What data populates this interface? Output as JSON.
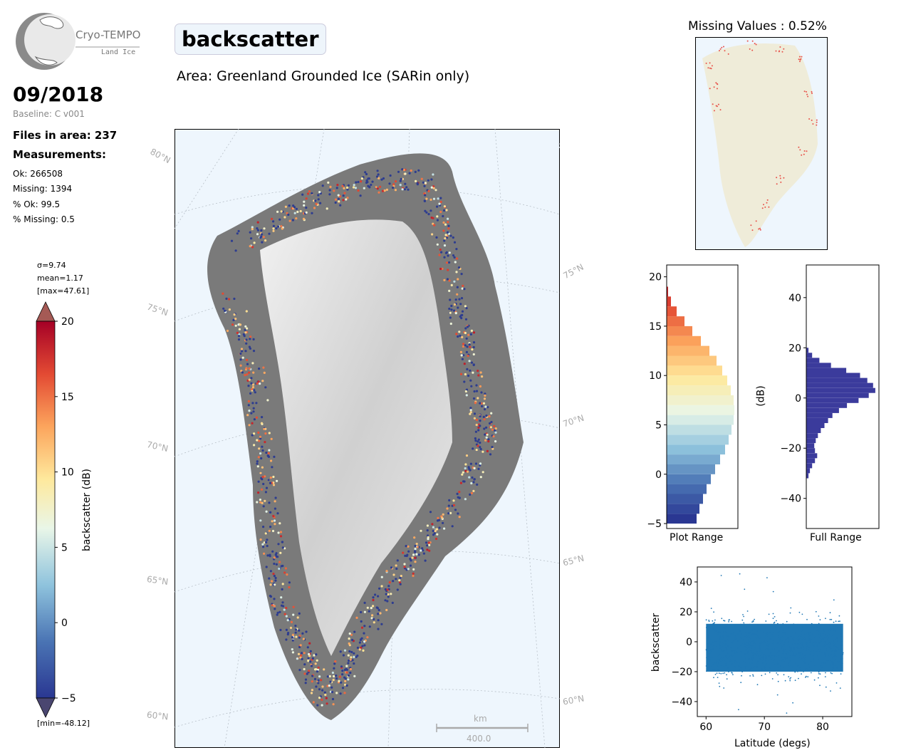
{
  "logo": {
    "name": "Cryo-TEMPO",
    "subtitle": "Land Ice"
  },
  "header": {
    "date": "09/2018",
    "baseline": "Baseline: C v001",
    "files_in_area": "Files in area: 237",
    "measurements_heading": "Measurements:",
    "stats": [
      "Ok: 266508",
      "Missing: 1394",
      "% Ok: 99.5",
      "% Missing: 0.5"
    ]
  },
  "title": "backscatter",
  "area": "Area: Greenland Grounded Ice (SARin only)",
  "colorbar": {
    "sigma": "σ=9.74",
    "mean": "mean=1.17",
    "max": "[max=47.61]",
    "min": "[min=-48.12]",
    "label": "backscatter (dB)",
    "ticks": [
      "20",
      "15",
      "10",
      "5",
      "0",
      "−5"
    ],
    "tick_values": [
      20,
      15,
      10,
      5,
      0,
      -5
    ],
    "range": [
      -5,
      20
    ],
    "colors": [
      "#2a3792",
      "#4a74b4",
      "#8fc3dd",
      "#e9f6e8",
      "#fee99d",
      "#fca55d",
      "#e34a33",
      "#a50026"
    ]
  },
  "map": {
    "lat_labels_left": [
      "80°N",
      "75°N",
      "70°N",
      "65°N",
      "60°N"
    ],
    "lat_labels_right": [
      "75°N",
      "70°N",
      "65°N",
      "60°N"
    ],
    "scale_unit": "km",
    "scale_value": "400.0",
    "colors": {
      "ocean": "#eef6fd",
      "ice": "#d9d9d9",
      "grid": "#b8c0c8"
    }
  },
  "missing_panel": {
    "title": "Missing Values : 0.52%",
    "colors": {
      "land": "#efecd9",
      "missing": "#e8524a"
    }
  },
  "chart_data": [
    {
      "type": "bar",
      "orientation": "horizontal",
      "name": "Plot Range histogram",
      "xlabel": "Plot Range",
      "ylabel": "",
      "ylim": [
        -5.5,
        21.2
      ],
      "yticks": [
        -5,
        0,
        5,
        10,
        15,
        20
      ],
      "bins": [
        -5,
        -4,
        -3,
        -2,
        -1,
        0,
        1,
        2,
        3,
        4,
        5,
        6,
        7,
        8,
        9,
        10,
        11,
        12,
        13,
        14,
        15,
        16,
        17,
        18
      ],
      "values": [
        0.42,
        0.46,
        0.51,
        0.56,
        0.62,
        0.68,
        0.75,
        0.82,
        0.87,
        0.91,
        0.94,
        0.95,
        0.94,
        0.9,
        0.85,
        0.78,
        0.7,
        0.6,
        0.48,
        0.36,
        0.25,
        0.14,
        0.06,
        0.02
      ]
    },
    {
      "type": "bar",
      "orientation": "horizontal",
      "name": "Full Range histogram",
      "xlabel": "Full Range",
      "ylabel": "(dB)",
      "ylim": [
        -52,
        53
      ],
      "yticks": [
        -40,
        -20,
        0,
        20,
        40
      ],
      "bins": [
        -32,
        -30,
        -28,
        -26,
        -24,
        -22,
        -20,
        -18,
        -16,
        -14,
        -12,
        -10,
        -8,
        -6,
        -4,
        -2,
        0,
        2,
        4,
        6,
        8,
        10,
        12,
        14,
        16,
        18
      ],
      "values": [
        0.03,
        0.05,
        0.08,
        0.12,
        0.15,
        0.12,
        0.11,
        0.13,
        0.16,
        0.2,
        0.25,
        0.3,
        0.36,
        0.45,
        0.56,
        0.72,
        0.86,
        0.95,
        0.92,
        0.84,
        0.74,
        0.55,
        0.34,
        0.18,
        0.08,
        0.03
      ],
      "color": "#3b3b9c"
    },
    {
      "type": "scatter",
      "name": "backscatter vs latitude",
      "xlabel": "Latitude (degs)",
      "ylabel": "backscatter",
      "xlim": [
        58.5,
        85
      ],
      "ylim": [
        -50,
        50
      ],
      "xticks": [
        60,
        70,
        80
      ],
      "yticks": [
        -40,
        -20,
        0,
        20,
        40
      ],
      "x_range": [
        60,
        83.5
      ],
      "y_core_range": [
        -20,
        12
      ],
      "y_extent": [
        -48.12,
        47.61
      ],
      "color": "#1f77b4"
    }
  ]
}
